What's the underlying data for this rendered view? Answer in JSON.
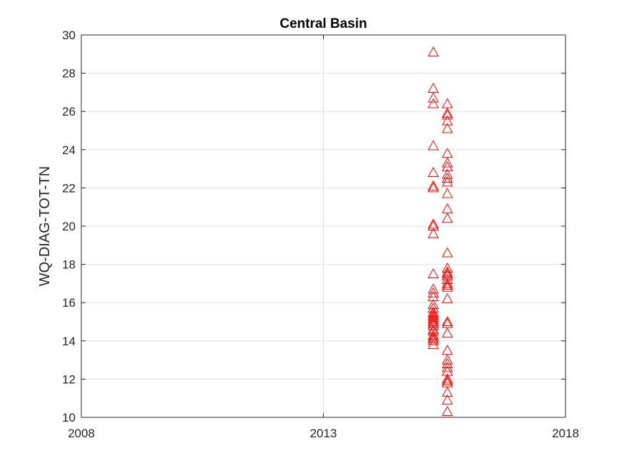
{
  "chart_data": {
    "type": "scatter",
    "title": "Central Basin",
    "xlabel": "",
    "ylabel": "WQ-DIAG-TOT-TN",
    "xlim": [
      2008,
      2018
    ],
    "ylim": [
      10,
      30
    ],
    "x_ticks": [
      "2008",
      "2013",
      "2018"
    ],
    "y_ticks": [
      10,
      12,
      14,
      16,
      18,
      20,
      22,
      24,
      26,
      28,
      30
    ],
    "grid": true,
    "legend": "none",
    "marker": "triangle",
    "marker_color": "#ff0000",
    "series": [
      {
        "x": [
          2015.27,
          2015.27,
          2015.27,
          2015.27,
          2015.27,
          2015.27,
          2015.27,
          2015.27,
          2015.27,
          2015.27,
          2015.27,
          2015.27,
          2015.27,
          2015.27,
          2015.27,
          2015.27,
          2015.27,
          2015.27,
          2015.27,
          2015.27,
          2015.27,
          2015.27,
          2015.27,
          2015.27,
          2015.27,
          2015.27,
          2015.27,
          2015.27,
          2015.27,
          2015.27,
          2015.27,
          2015.27,
          2015.56,
          2015.56,
          2015.56,
          2015.56,
          2015.56,
          2015.56,
          2015.56,
          2015.56,
          2015.56,
          2015.56,
          2015.56,
          2015.56,
          2015.56,
          2015.56,
          2015.56,
          2015.56,
          2015.56,
          2015.56,
          2015.56,
          2015.56,
          2015.56,
          2015.56,
          2015.56,
          2015.56,
          2015.56,
          2015.56,
          2015.56,
          2015.56,
          2015.56,
          2015.56,
          2015.56,
          2015.56,
          2015.56,
          2015.56,
          2015.56,
          2015.56,
          2015.56,
          2015.56
        ],
        "y": [
          29.1,
          27.2,
          26.7,
          26.4,
          24.2,
          22.8,
          22.1,
          22.0,
          20.1,
          20.0,
          19.6,
          17.5,
          16.7,
          16.5,
          16.3,
          15.9,
          15.7,
          15.5,
          15.4,
          15.3,
          15.2,
          15.1,
          15.0,
          14.9,
          14.8,
          14.6,
          14.5,
          14.3,
          14.2,
          14.1,
          14.0,
          13.8,
          26.4,
          25.9,
          25.8,
          25.5,
          25.1,
          23.8,
          23.3,
          23.1,
          22.7,
          22.5,
          22.3,
          21.7,
          20.9,
          20.4,
          18.6,
          17.8,
          17.6,
          17.5,
          17.4,
          17.2,
          17.0,
          16.8,
          16.2,
          15.0,
          14.9,
          14.4,
          13.5,
          13.0,
          12.8,
          12.6,
          12.4,
          12.0,
          11.9,
          11.8,
          11.3,
          10.9,
          10.3,
          16.9
        ]
      }
    ]
  }
}
